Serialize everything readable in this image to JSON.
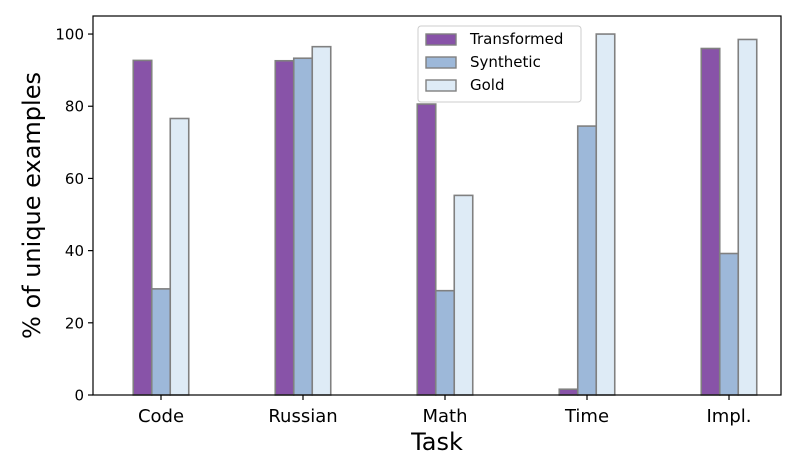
{
  "chart_data": {
    "type": "bar",
    "title": "",
    "xlabel": "Task",
    "ylabel": "% of unique examples",
    "categories": [
      "Code",
      "Russian",
      "Math",
      "Time",
      "Impl."
    ],
    "series": [
      {
        "name": "Transformed",
        "values": [
          92.7,
          92.6,
          80.6,
          1.6,
          96.0
        ],
        "color": "#8853a8"
      },
      {
        "name": "Synthetic",
        "values": [
          29.4,
          93.3,
          28.9,
          74.5,
          39.2
        ],
        "color": "#9db8d9"
      },
      {
        "name": "Gold",
        "values": [
          76.6,
          96.5,
          55.3,
          100.0,
          98.5
        ],
        "color": "#deebf6"
      }
    ],
    "ylim": [
      0,
      105
    ],
    "yticks": [
      0,
      20,
      40,
      60,
      80,
      100
    ],
    "grid": false,
    "legend_position": "top-center",
    "bar_edge_color": "#808080"
  }
}
